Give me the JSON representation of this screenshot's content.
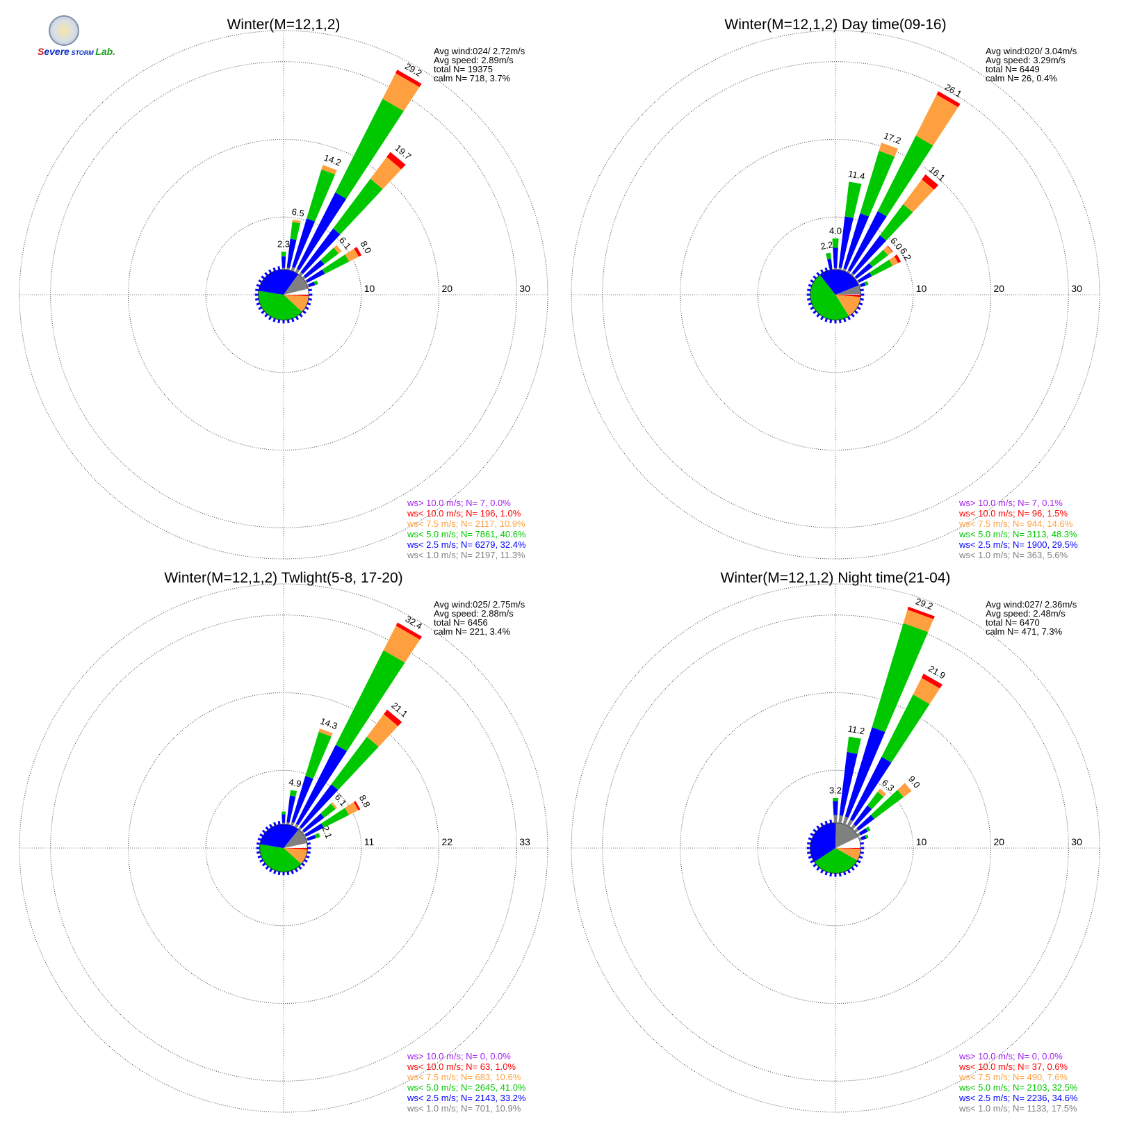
{
  "logo": {
    "name": "SEVERE STORM Lab."
  },
  "chart_data": [
    {
      "type": "polar-bar",
      "title": "Winter(M=12,1,2)",
      "radial_ticks": [
        10,
        20,
        30
      ],
      "rmax": 34,
      "stats": [
        "Avg wind:024/ 2.72m/s",
        "Avg speed: 2.89m/s",
        "total N=      19375",
        "calm N=    718,   3.7%"
      ],
      "pie": [
        11.3,
        32.4,
        40.6,
        10.9,
        1.0,
        0.0
      ],
      "sectors": [
        {
          "dir": 0,
          "values": [
            0.2,
            1.5,
            0.6,
            0,
            0,
            0
          ],
          "label": "2.3"
        },
        {
          "dir": 10,
          "values": [
            0.3,
            3.7,
            2.2,
            0.3,
            0,
            0
          ],
          "label": "6.5"
        },
        {
          "dir": 20,
          "values": [
            0.5,
            6.5,
            6.6,
            0.6,
            0,
            0
          ],
          "label": "14.2"
        },
        {
          "dir": 30,
          "values": [
            0.5,
            11.0,
            13.5,
            3.7,
            0.5,
            0
          ],
          "label": "29.2"
        },
        {
          "dir": 40,
          "values": [
            0.4,
            7.0,
            8.0,
            3.5,
            0.8,
            0
          ],
          "label": "19.7"
        },
        {
          "dir": 50,
          "values": [
            0.3,
            3.0,
            2.3,
            0.5,
            0,
            0
          ],
          "label": "6.1"
        },
        {
          "dir": 60,
          "values": [
            0.2,
            2.5,
            3.5,
            1.4,
            0.4,
            0
          ],
          "label": "8.0"
        },
        {
          "dir": 70,
          "values": [
            0.2,
            0.8,
            0.4,
            0,
            0,
            0
          ],
          "label": ""
        }
      ],
      "legend": [
        {
          "text": "ws> 10.0 m/s; N=    7,  0.0%",
          "color": "#a020f0"
        },
        {
          "text": "ws< 10.0 m/s; N=  196,  1.0%",
          "color": "#ff0000"
        },
        {
          "text": "ws<  7.5 m/s; N= 2117, 10.9%",
          "color": "#ffa040"
        },
        {
          "text": "ws<  5.0 m/s; N= 7861, 40.6%",
          "color": "#00c800"
        },
        {
          "text": "ws<  2.5 m/s; N= 6279, 32.4%",
          "color": "#0000ff"
        },
        {
          "text": "ws<  1.0 m/s; N= 2197, 11.3%",
          "color": "#808080"
        }
      ]
    },
    {
      "type": "polar-bar",
      "title": "Winter(M=12,1,2) Day time(09-16)",
      "radial_ticks": [
        10,
        20,
        30
      ],
      "rmax": 34,
      "stats": [
        "Avg wind:020/ 3.04m/s",
        "Avg speed: 3.29m/s",
        "total N=        6449",
        "calm N=     26,   0.4%"
      ],
      "pie": [
        5.6,
        29.5,
        48.3,
        14.6,
        1.5,
        0.1
      ],
      "sectors": [
        {
          "dir": -10,
          "values": [
            0.2,
            1.2,
            0.8,
            0,
            0,
            0
          ],
          "label": "2.2"
        },
        {
          "dir": 0,
          "values": [
            0.2,
            2.6,
            1.2,
            0,
            0,
            0
          ],
          "label": "4.0"
        },
        {
          "dir": 10,
          "values": [
            0.3,
            6.6,
            4.5,
            0,
            0,
            0
          ],
          "label": "11.4"
        },
        {
          "dir": 20,
          "values": [
            0.3,
            7.4,
            8.4,
            1.1,
            0,
            0
          ],
          "label": "17.2"
        },
        {
          "dir": 30,
          "values": [
            0.3,
            8.5,
            10.9,
            5.9,
            0.5,
            0
          ],
          "label": "26.1"
        },
        {
          "dir": 40,
          "values": [
            0.3,
            6.0,
            5.0,
            4.0,
            0.8,
            0
          ],
          "label": "16.1"
        },
        {
          "dir": 50,
          "values": [
            0.2,
            2.5,
            2.5,
            0.7,
            0.1,
            0
          ],
          "label": "6.0"
        },
        {
          "dir": 60,
          "values": [
            0.2,
            1.8,
            3.0,
            0.8,
            0.4,
            0
          ],
          "label": "6.2"
        },
        {
          "dir": 70,
          "values": [
            0.2,
            0.6,
            0.4,
            0,
            0,
            0
          ],
          "label": ""
        }
      ],
      "legend": [
        {
          "text": "ws> 10.0 m/s; N=    7,  0.1%",
          "color": "#a020f0"
        },
        {
          "text": "ws< 10.0 m/s; N=   96,  1.5%",
          "color": "#ff0000"
        },
        {
          "text": "ws<  7.5 m/s; N=  944, 14.6%",
          "color": "#ffa040"
        },
        {
          "text": "ws<  5.0 m/s; N= 3113, 48.3%",
          "color": "#00c800"
        },
        {
          "text": "ws<  2.5 m/s; N= 1900, 29.5%",
          "color": "#0000ff"
        },
        {
          "text": "ws<  1.0 m/s; N=  363,  5.6%",
          "color": "#808080"
        }
      ]
    },
    {
      "type": "polar-bar",
      "title": "Winter(M=12,1,2) Twlight(5-8, 17-20)",
      "radial_ticks": [
        11,
        22,
        33
      ],
      "rmax": 37.4,
      "stats": [
        "Avg wind:025/ 2.75m/s",
        "Avg speed: 2.88m/s",
        "total N=        6456",
        "calm N=    221,   3.4%"
      ],
      "pie": [
        10.9,
        33.2,
        41.0,
        10.6,
        1.0,
        0.0
      ],
      "sectors": [
        {
          "dir": 0,
          "values": [
            0.2,
            1.2,
            0.4,
            0,
            0,
            0
          ],
          "label": ""
        },
        {
          "dir": 10,
          "values": [
            0.3,
            3.8,
            0.8,
            0,
            0,
            0
          ],
          "label": "4.9"
        },
        {
          "dir": 20,
          "values": [
            0.5,
            6.8,
            6.5,
            0.5,
            0,
            0
          ],
          "label": "14.3"
        },
        {
          "dir": 30,
          "values": [
            0.5,
            12.5,
            15.0,
            3.9,
            0.5,
            0
          ],
          "label": "32.4"
        },
        {
          "dir": 40,
          "values": [
            0.4,
            7.5,
            8.4,
            4.0,
            0.8,
            0
          ],
          "label": "21.1"
        },
        {
          "dir": 50,
          "values": [
            0.3,
            3.5,
            2.0,
            0.3,
            0,
            0
          ],
          "label": "6.1"
        },
        {
          "dir": 60,
          "values": [
            0.2,
            2.8,
            4.0,
            1.5,
            0.3,
            0
          ],
          "label": "8.8"
        },
        {
          "dir": 70,
          "values": [
            0.2,
            1.2,
            0.6,
            0.1,
            0,
            0
          ],
          "label": "2.1"
        }
      ],
      "legend": [
        {
          "text": "ws> 10.0 m/s; N=    0,  0.0%",
          "color": "#a020f0"
        },
        {
          "text": "ws< 10.0 m/s; N=   63,  1.0%",
          "color": "#ff0000"
        },
        {
          "text": "ws<  7.5 m/s; N=  683, 10.6%",
          "color": "#ffa040"
        },
        {
          "text": "ws<  5.0 m/s; N= 2645, 41.0%",
          "color": "#00c800"
        },
        {
          "text": "ws<  2.5 m/s; N= 2143, 33.2%",
          "color": "#0000ff"
        },
        {
          "text": "ws<  1.0 m/s; N=  701, 10.9%",
          "color": "#808080"
        }
      ]
    },
    {
      "type": "polar-bar",
      "title": "Winter(M=12,1,2) Night time(21-04)",
      "radial_ticks": [
        10,
        20,
        30
      ],
      "rmax": 34,
      "stats": [
        "Avg wind:027/ 2.36m/s",
        "Avg speed: 2.48m/s",
        "total N=        6470",
        "calm N=    471,   7.3%"
      ],
      "pie": [
        17.5,
        34.6,
        32.5,
        7.6,
        0.6,
        0.0
      ],
      "sectors": [
        {
          "dir": 0,
          "values": [
            1.0,
            1.8,
            0.4,
            0,
            0,
            0
          ],
          "label": "3.2"
        },
        {
          "dir": 10,
          "values": [
            1.0,
            8.2,
            2.0,
            0,
            0,
            0
          ],
          "label": "11.2"
        },
        {
          "dir": 20,
          "values": [
            1.0,
            12.0,
            14.0,
            1.8,
            0.4,
            0
          ],
          "label": "29.2"
        },
        {
          "dir": 30,
          "values": [
            0.9,
            9.0,
            9.0,
            2.4,
            0.6,
            0
          ],
          "label": "21.9"
        },
        {
          "dir": 40,
          "values": [
            0.6,
            3.0,
            2.2,
            0.5,
            0,
            0
          ],
          "label": "6.3"
        },
        {
          "dir": 50,
          "values": [
            0.5,
            2.5,
            4.7,
            1.3,
            0,
            0
          ],
          "label": "9.0"
        },
        {
          "dir": 60,
          "values": [
            0.4,
            1.0,
            0.4,
            0,
            0,
            0
          ],
          "label": ""
        },
        {
          "dir": 70,
          "values": [
            0.3,
            0.6,
            0.3,
            0,
            0,
            0
          ],
          "label": ""
        }
      ],
      "legend": [
        {
          "text": "ws> 10.0 m/s; N=    0,  0.0%",
          "color": "#a020f0"
        },
        {
          "text": "ws< 10.0 m/s; N=   37,  0.6%",
          "color": "#ff0000"
        },
        {
          "text": "ws<  7.5 m/s; N=  490,  7.6%",
          "color": "#ffa040"
        },
        {
          "text": "ws<  5.0 m/s; N= 2103, 32.5%",
          "color": "#00c800"
        },
        {
          "text": "ws<  2.5 m/s; N= 2236, 34.6%",
          "color": "#0000ff"
        },
        {
          "text": "ws<  1.0 m/s; N= 1133, 17.5%",
          "color": "#808080"
        }
      ]
    }
  ],
  "colors": [
    "#808080",
    "#0000ff",
    "#00c800",
    "#ffa040",
    "#ff0000",
    "#a020f0"
  ]
}
